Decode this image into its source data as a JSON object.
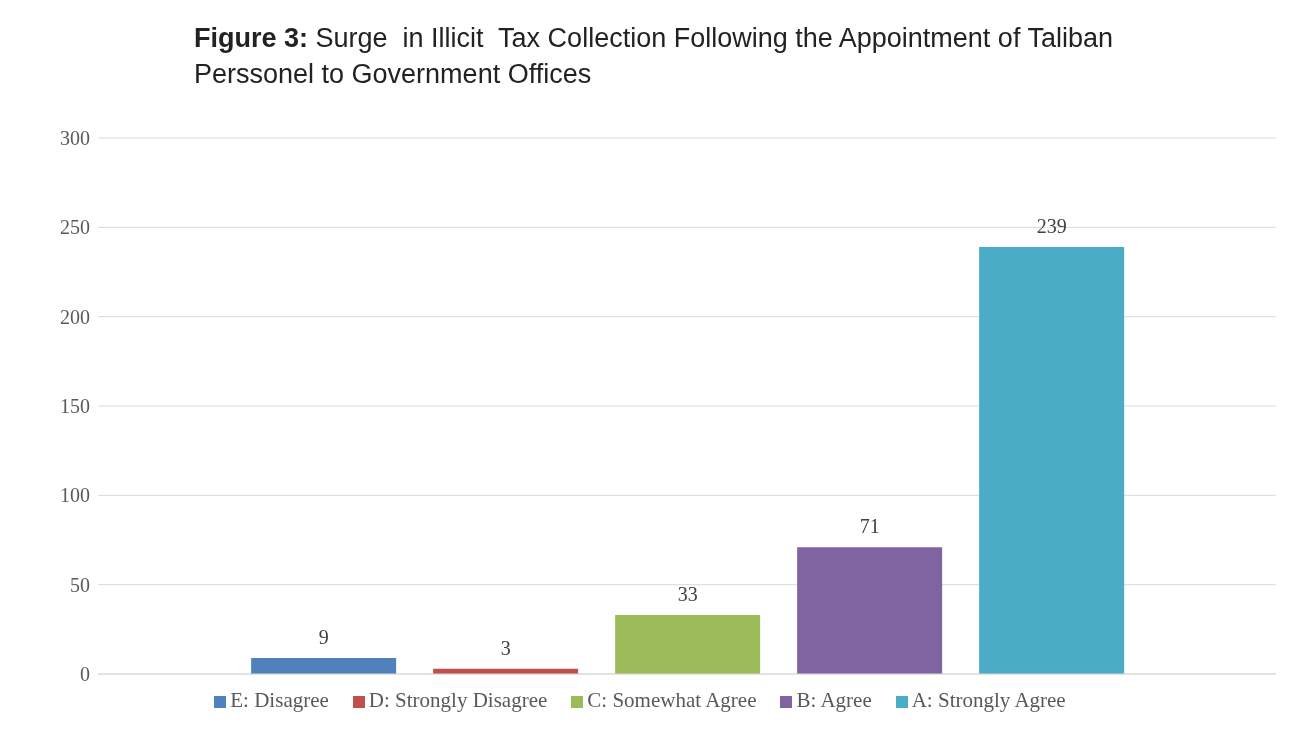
{
  "chart_data": {
    "type": "bar",
    "title": "Figure 3: Surge  in Illicit  Tax Collection Following the Appointment of Taliban Perssonel to Government Offices",
    "categories": [
      null
    ],
    "series": [
      {
        "name": "E: Disagree",
        "color": "#4f81bd",
        "values": [
          9
        ]
      },
      {
        "name": "D: Strongly Disagree",
        "color": "#c0504d",
        "values": [
          3
        ]
      },
      {
        "name": "C: Somewhat Agree",
        "color": "#9bbb59",
        "values": [
          33
        ]
      },
      {
        "name": "B: Agree",
        "color": "#8064a2",
        "values": [
          71
        ]
      },
      {
        "name": "A: Strongly Agree",
        "color": "#4bacc6",
        "values": [
          239
        ]
      }
    ],
    "ylim": [
      0,
      300
    ],
    "yticks": [
      0,
      50,
      100,
      150,
      200,
      250,
      300
    ],
    "grid": "y",
    "legend": "bottom",
    "data_labels": true
  }
}
